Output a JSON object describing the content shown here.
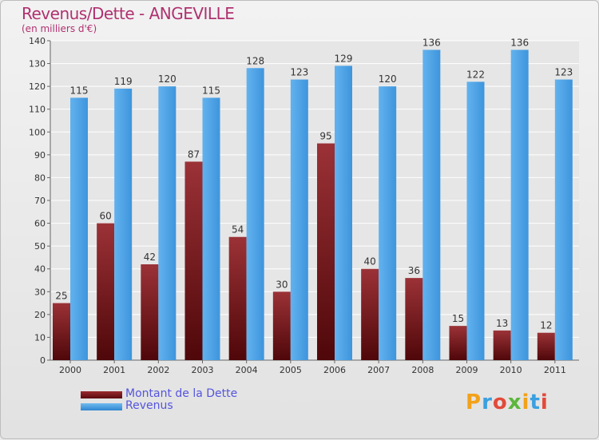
{
  "chart_data": {
    "type": "bar",
    "title": "Revenus/Dette - ANGEVILLE",
    "subtitle": "(en milliers d'€)",
    "categories": [
      "2000",
      "2001",
      "2002",
      "2003",
      "2004",
      "2005",
      "2006",
      "2007",
      "2008",
      "2009",
      "2010",
      "2011"
    ],
    "series": [
      {
        "name": "Montant de la Dette",
        "color": "#7a1418",
        "values": [
          25,
          60,
          42,
          87,
          54,
          30,
          95,
          40,
          36,
          15,
          13,
          12
        ]
      },
      {
        "name": "Revenus",
        "color": "#4aa3e8",
        "values": [
          115,
          119,
          120,
          115,
          128,
          123,
          129,
          120,
          136,
          122,
          136,
          123
        ]
      }
    ],
    "ylim": [
      0,
      140
    ],
    "yticks": [
      0,
      10,
      20,
      30,
      40,
      50,
      60,
      70,
      80,
      90,
      100,
      110,
      120,
      130,
      140
    ],
    "grid": true,
    "legend_position": "bottom-left"
  },
  "logo": {
    "text": "Proxiti"
  }
}
